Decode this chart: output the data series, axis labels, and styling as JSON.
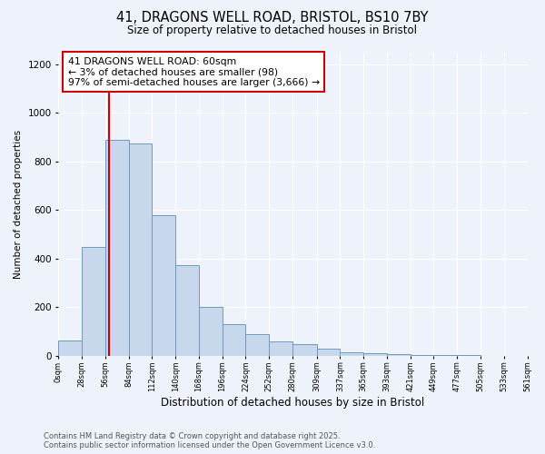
{
  "title_line1": "41, DRAGONS WELL ROAD, BRISTOL, BS10 7BY",
  "title_line2": "Size of property relative to detached houses in Bristol",
  "xlabel": "Distribution of detached houses by size in Bristol",
  "ylabel": "Number of detached properties",
  "annotation_lines": [
    "41 DRAGONS WELL ROAD: 60sqm",
    "← 3% of detached houses are smaller (98)",
    "97% of semi-detached houses are larger (3,666) →"
  ],
  "bin_edges": [
    0,
    28,
    56,
    84,
    112,
    140,
    168,
    196,
    224,
    252,
    280,
    309,
    337,
    365,
    393,
    421,
    449,
    477,
    505,
    533,
    561
  ],
  "bar_heights": [
    62,
    450,
    890,
    875,
    580,
    375,
    200,
    130,
    90,
    60,
    50,
    30,
    15,
    10,
    8,
    5,
    3,
    2,
    1,
    1
  ],
  "bar_color": "#c8d8ec",
  "bar_edge_color": "#7099bb",
  "vline_x": 60,
  "vline_color": "#cc0000",
  "ylim": [
    0,
    1250
  ],
  "xlim": [
    0,
    561
  ],
  "background_color": "#eef2fb",
  "grid_color": "#ffffff",
  "annotation_box_color": "#ffffff",
  "annotation_box_edge_color": "#cc0000",
  "footer_text": "Contains HM Land Registry data © Crown copyright and database right 2025.\nContains public sector information licensed under the Open Government Licence v3.0.",
  "tick_labels": [
    "0sqm",
    "28sqm",
    "56sqm",
    "84sqm",
    "112sqm",
    "140sqm",
    "168sqm",
    "196sqm",
    "224sqm",
    "252sqm",
    "280sqm",
    "309sqm",
    "337sqm",
    "365sqm",
    "393sqm",
    "421sqm",
    "449sqm",
    "477sqm",
    "505sqm",
    "533sqm",
    "561sqm"
  ]
}
